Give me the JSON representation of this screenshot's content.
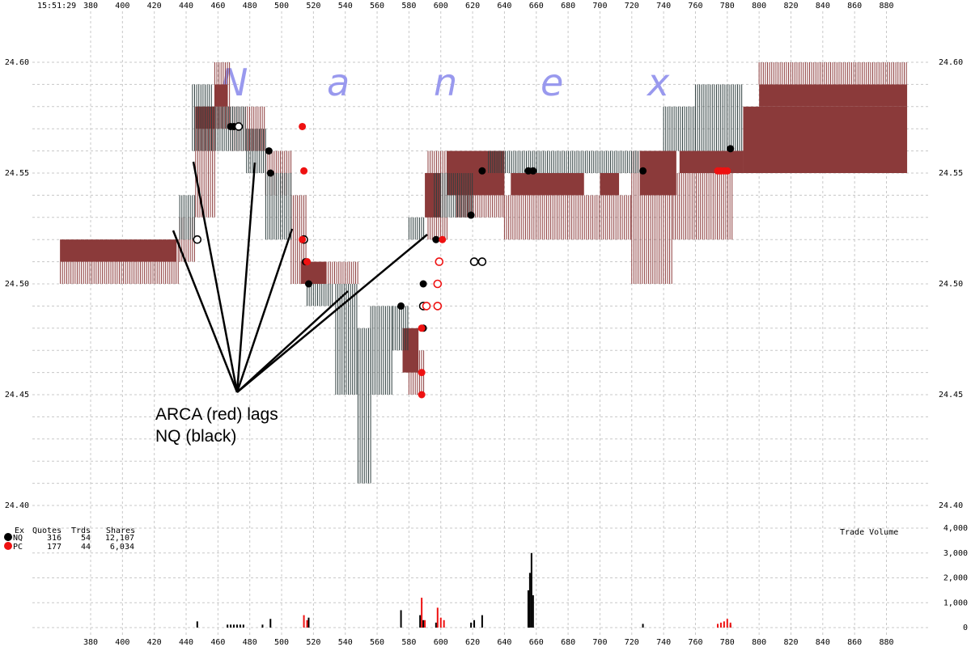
{
  "timestamp": "15:51:29",
  "watermark": [
    "N",
    "a",
    "n",
    "e",
    "x"
  ],
  "colors": {
    "nq": "#000000",
    "pc": "#ee1111",
    "arca_quote": "#8b3a3a",
    "nq_quote": "#2f3f3f",
    "watermark": "#9999ee",
    "grid": "#c8c8c8"
  },
  "annotation": {
    "line1": "ARCA (red) lags",
    "line2": "NQ (black)"
  },
  "stats": {
    "headers": [
      "Ex",
      "Quotes",
      "Trds",
      "Shares"
    ],
    "rows": [
      {
        "ex": "NQ",
        "quotes": "316",
        "trds": "54",
        "shares": "12,107",
        "color": "#000000"
      },
      {
        "ex": "PC",
        "quotes": "177",
        "trds": "44",
        "shares": "6,034",
        "color": "#ee1111"
      }
    ]
  },
  "volume_title": "Trade Volume",
  "chart_data": {
    "type": "scatter",
    "x_ticks": [
      "380",
      "400",
      "420",
      "440",
      "460",
      "480",
      "500",
      "520",
      "540",
      "560",
      "580",
      "600",
      "620",
      "640",
      "660",
      "680",
      "700",
      "720",
      "740",
      "760",
      "780",
      "800",
      "820",
      "840",
      "860",
      "880"
    ],
    "price_ticks": [
      "24.60",
      "24.55",
      "24.50",
      "24.45",
      "24.40"
    ],
    "price_ylim": [
      24.4,
      24.6
    ],
    "volume_ticks": [
      "4,000",
      "3,000",
      "2,000",
      "1,000",
      "0"
    ],
    "volume_ylim": [
      0,
      4000
    ],
    "grid": true,
    "quote_bands": {
      "arca": [
        {
          "x0": 361,
          "x1": 436,
          "lo": 24.5,
          "hi": 24.52
        },
        {
          "x0": 361,
          "x1": 434,
          "lo": 24.51,
          "hi": 24.52,
          "solid": true
        },
        {
          "x0": 436,
          "x1": 446,
          "lo": 24.51,
          "hi": 24.53
        },
        {
          "x0": 446,
          "x1": 458,
          "lo": 24.53,
          "hi": 24.58
        },
        {
          "x0": 446,
          "x1": 458,
          "lo": 24.57,
          "hi": 24.58,
          "solid": true
        },
        {
          "x0": 458,
          "x1": 468,
          "lo": 24.57,
          "hi": 24.6
        },
        {
          "x0": 458,
          "x1": 466,
          "lo": 24.58,
          "hi": 24.59,
          "solid": true
        },
        {
          "x0": 468,
          "x1": 490,
          "lo": 24.56,
          "hi": 24.58
        },
        {
          "x0": 490,
          "x1": 506,
          "lo": 24.54,
          "hi": 24.56
        },
        {
          "x0": 506,
          "x1": 516,
          "lo": 24.5,
          "hi": 24.54
        },
        {
          "x0": 512,
          "x1": 528,
          "lo": 24.5,
          "hi": 24.51,
          "solid": true
        },
        {
          "x0": 528,
          "x1": 548,
          "lo": 24.5,
          "hi": 24.51
        },
        {
          "x0": 576,
          "x1": 586,
          "lo": 24.46,
          "hi": 24.48,
          "solid": true
        },
        {
          "x0": 580,
          "x1": 590,
          "lo": 24.45,
          "hi": 24.47
        },
        {
          "x0": 590,
          "x1": 600,
          "lo": 24.53,
          "hi": 24.55,
          "solid": true
        },
        {
          "x0": 592,
          "x1": 604,
          "lo": 24.52,
          "hi": 24.56
        },
        {
          "x0": 604,
          "x1": 640,
          "lo": 24.54,
          "hi": 24.56,
          "solid": true
        },
        {
          "x0": 610,
          "x1": 640,
          "lo": 24.53,
          "hi": 24.54
        },
        {
          "x0": 640,
          "x1": 720,
          "lo": 24.52,
          "hi": 24.54
        },
        {
          "x0": 644,
          "x1": 690,
          "lo": 24.54,
          "hi": 24.55,
          "solid": true
        },
        {
          "x0": 700,
          "x1": 712,
          "lo": 24.54,
          "hi": 24.55,
          "solid": true
        },
        {
          "x0": 720,
          "x1": 746,
          "lo": 24.5,
          "hi": 24.56
        },
        {
          "x0": 725,
          "x1": 748,
          "lo": 24.54,
          "hi": 24.56,
          "solid": true
        },
        {
          "x0": 746,
          "x1": 784,
          "lo": 24.52,
          "hi": 24.55
        },
        {
          "x0": 750,
          "x1": 790,
          "lo": 24.55,
          "hi": 24.56,
          "solid": true
        },
        {
          "x0": 790,
          "x1": 893,
          "lo": 24.55,
          "hi": 24.58,
          "solid": true
        },
        {
          "x0": 800,
          "x1": 893,
          "lo": 24.58,
          "hi": 24.59,
          "solid": true
        },
        {
          "x0": 800,
          "x1": 893,
          "lo": 24.59,
          "hi": 24.6
        }
      ],
      "nq": [
        {
          "x0": 436,
          "x1": 446,
          "lo": 24.52,
          "hi": 24.54
        },
        {
          "x0": 444,
          "x1": 456,
          "lo": 24.56,
          "hi": 24.59
        },
        {
          "x0": 456,
          "x1": 478,
          "lo": 24.56,
          "hi": 24.58
        },
        {
          "x0": 478,
          "x1": 490,
          "lo": 24.55,
          "hi": 24.57
        },
        {
          "x0": 490,
          "x1": 506,
          "lo": 24.52,
          "hi": 24.55
        },
        {
          "x0": 516,
          "x1": 532,
          "lo": 24.49,
          "hi": 24.5
        },
        {
          "x0": 534,
          "x1": 548,
          "lo": 24.45,
          "hi": 24.5
        },
        {
          "x0": 548,
          "x1": 556,
          "lo": 24.41,
          "hi": 24.48
        },
        {
          "x0": 556,
          "x1": 570,
          "lo": 24.45,
          "hi": 24.49
        },
        {
          "x0": 570,
          "x1": 580,
          "lo": 24.47,
          "hi": 24.49
        },
        {
          "x0": 580,
          "x1": 590,
          "lo": 24.52,
          "hi": 24.53
        },
        {
          "x0": 596,
          "x1": 620,
          "lo": 24.53,
          "hi": 24.55
        },
        {
          "x0": 630,
          "x1": 724,
          "lo": 24.55,
          "hi": 24.56
        },
        {
          "x0": 740,
          "x1": 760,
          "lo": 24.56,
          "hi": 24.58
        },
        {
          "x0": 760,
          "x1": 790,
          "lo": 24.56,
          "hi": 24.59
        }
      ]
    },
    "trades": {
      "nq": [
        {
          "x": 468,
          "y": 24.571,
          "filled": true
        },
        {
          "x": 470,
          "y": 24.571,
          "filled": true
        },
        {
          "x": 492,
          "y": 24.56,
          "filled": true
        },
        {
          "x": 493,
          "y": 24.55,
          "filled": true
        },
        {
          "x": 515,
          "y": 24.51,
          "filled": true
        },
        {
          "x": 517,
          "y": 24.5,
          "filled": true
        },
        {
          "x": 575,
          "y": 24.49,
          "filled": true
        },
        {
          "x": 589,
          "y": 24.5,
          "filled": true
        },
        {
          "x": 589,
          "y": 24.48,
          "filled": true
        },
        {
          "x": 590,
          "y": 24.49,
          "filled": true
        },
        {
          "x": 597,
          "y": 24.52,
          "filled": true
        },
        {
          "x": 619,
          "y": 24.531,
          "filled": true
        },
        {
          "x": 626,
          "y": 24.551,
          "filled": true
        },
        {
          "x": 655,
          "y": 24.551,
          "filled": true
        },
        {
          "x": 658,
          "y": 24.551,
          "filled": true
        },
        {
          "x": 727,
          "y": 24.551,
          "filled": true
        },
        {
          "x": 782,
          "y": 24.561,
          "filled": true
        },
        {
          "x": 473,
          "y": 24.571,
          "filled": false
        },
        {
          "x": 447,
          "y": 24.52,
          "filled": false
        },
        {
          "x": 514,
          "y": 24.52,
          "filled": false
        },
        {
          "x": 621,
          "y": 24.51,
          "filled": false
        },
        {
          "x": 626,
          "y": 24.51,
          "filled": false
        },
        {
          "x": 589,
          "y": 24.49,
          "filled": false
        }
      ],
      "pc": [
        {
          "x": 513,
          "y": 24.571,
          "filled": true
        },
        {
          "x": 514,
          "y": 24.551,
          "filled": true
        },
        {
          "x": 516,
          "y": 24.51,
          "filled": true
        },
        {
          "x": 588,
          "y": 24.48,
          "filled": true
        },
        {
          "x": 588,
          "y": 24.46,
          "filled": true
        },
        {
          "x": 588,
          "y": 24.45,
          "filled": true
        },
        {
          "x": 601,
          "y": 24.52,
          "filled": true
        },
        {
          "x": 513,
          "y": 24.52,
          "filled": true
        },
        {
          "x": 774,
          "y": 24.551,
          "filled": true
        },
        {
          "x": 776,
          "y": 24.551,
          "filled": true
        },
        {
          "x": 778,
          "y": 24.551,
          "filled": true
        },
        {
          "x": 780,
          "y": 24.551,
          "filled": true
        },
        {
          "x": 599,
          "y": 24.51,
          "filled": false
        },
        {
          "x": 598,
          "y": 24.5,
          "filled": false
        },
        {
          "x": 598,
          "y": 24.49,
          "filled": false
        },
        {
          "x": 591,
          "y": 24.49,
          "filled": false
        }
      ]
    },
    "volume": {
      "nq": [
        {
          "x": 447,
          "v": 250
        },
        {
          "x": 466,
          "v": 120
        },
        {
          "x": 468,
          "v": 120
        },
        {
          "x": 470,
          "v": 120
        },
        {
          "x": 472,
          "v": 120
        },
        {
          "x": 474,
          "v": 120
        },
        {
          "x": 476,
          "v": 120
        },
        {
          "x": 488,
          "v": 120
        },
        {
          "x": 493,
          "v": 350
        },
        {
          "x": 517,
          "v": 400
        },
        {
          "x": 575,
          "v": 700
        },
        {
          "x": 587,
          "v": 500
        },
        {
          "x": 589,
          "v": 300
        },
        {
          "x": 597,
          "v": 200
        },
        {
          "x": 619,
          "v": 200
        },
        {
          "x": 621,
          "v": 300
        },
        {
          "x": 626,
          "v": 500
        },
        {
          "x": 655,
          "v": 1500
        },
        {
          "x": 656,
          "v": 2200
        },
        {
          "x": 657,
          "v": 3000
        },
        {
          "x": 658,
          "v": 1300
        },
        {
          "x": 727,
          "v": 150
        },
        {
          "x": 782,
          "v": 120
        }
      ],
      "pc": [
        {
          "x": 514,
          "v": 500
        },
        {
          "x": 516,
          "v": 300
        },
        {
          "x": 588,
          "v": 1200
        },
        {
          "x": 590,
          "v": 300
        },
        {
          "x": 598,
          "v": 800
        },
        {
          "x": 600,
          "v": 400
        },
        {
          "x": 602,
          "v": 300
        },
        {
          "x": 774,
          "v": 150
        },
        {
          "x": 776,
          "v": 200
        },
        {
          "x": 778,
          "v": 250
        },
        {
          "x": 780,
          "v": 350
        },
        {
          "x": 782,
          "v": 200
        }
      ]
    }
  }
}
